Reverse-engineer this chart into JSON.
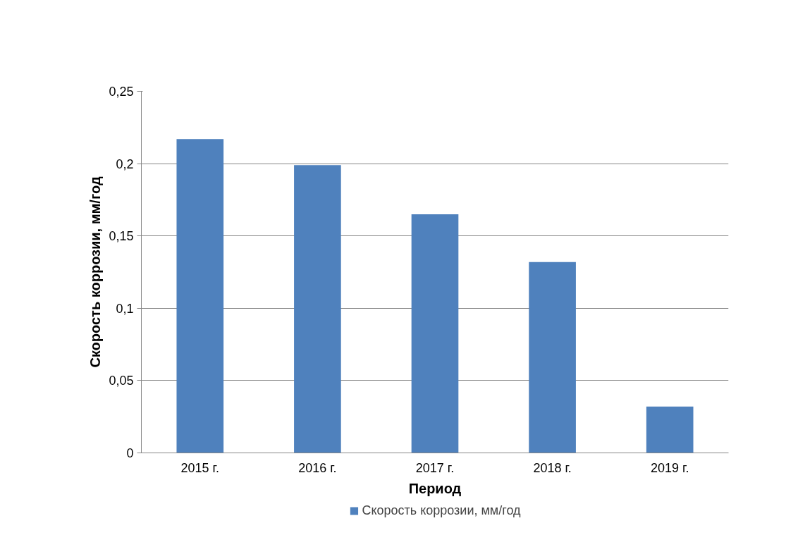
{
  "chart_data": {
    "type": "bar",
    "xlabel": "Период",
    "ylabel": "Скорость коррозии, мм/год",
    "categories": [
      "2015 г.",
      "2016 г.",
      "2017 г.",
      "2018 г.",
      "2019 г."
    ],
    "series": [
      {
        "name": "Скорость коррозии, мм/год",
        "color": "#4f81bd",
        "values": [
          0.217,
          0.199,
          0.165,
          0.132,
          0.032
        ]
      }
    ],
    "ylim": [
      0,
      0.25
    ],
    "yticks": [
      0,
      {
        "value": 0.05,
        "label": "0,05"
      },
      {
        "value": 0.1,
        "label": "0,1"
      },
      {
        "value": 0.15,
        "label": "0,15"
      },
      {
        "value": 0.2,
        "label": "0,2"
      },
      {
        "value": 0.25,
        "label": "0,25"
      }
    ],
    "grid": "y",
    "legend": "bottom"
  }
}
